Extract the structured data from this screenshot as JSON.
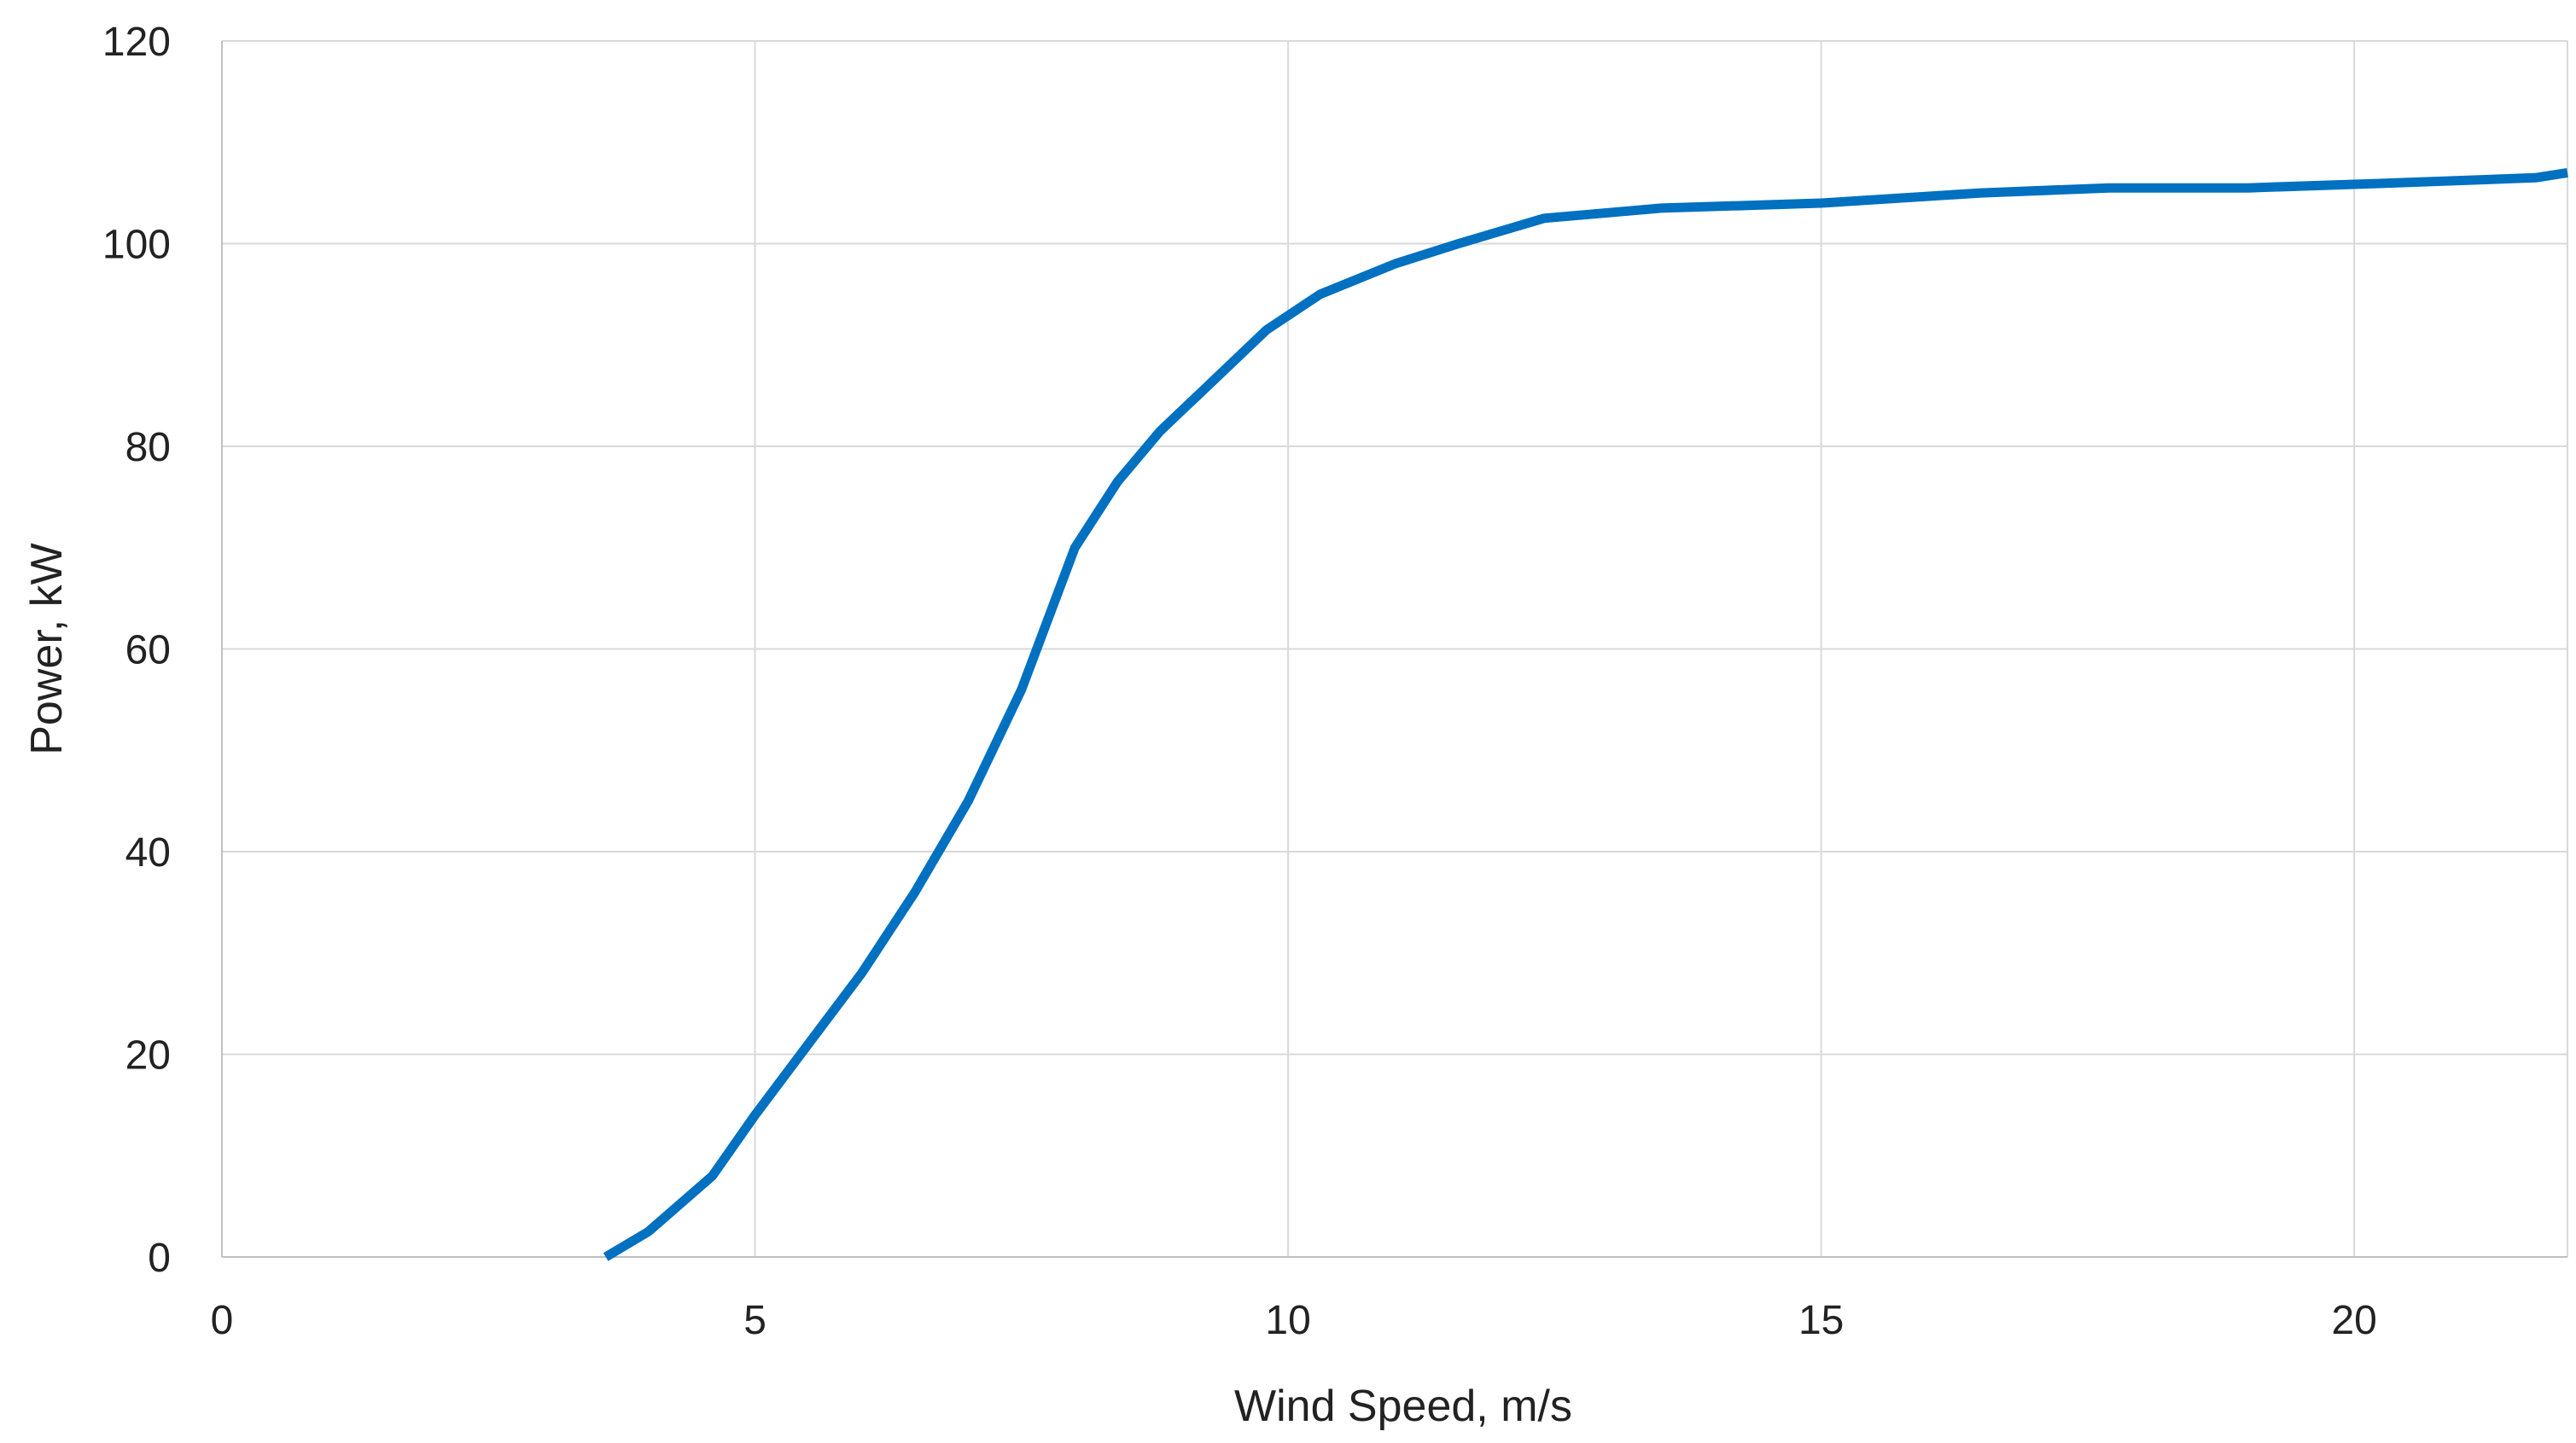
{
  "chart_data": {
    "type": "line",
    "title": "",
    "xlabel": "Wind Speed, m/s",
    "ylabel": "Power, kW",
    "xlim": [
      0,
      22
    ],
    "ylim": [
      0,
      120
    ],
    "xticks": [
      0,
      5,
      10,
      15,
      20
    ],
    "yticks": [
      0,
      20,
      40,
      60,
      80,
      100,
      120
    ],
    "grid": true,
    "legend": "none",
    "series": [
      {
        "color": "#0070c0",
        "x": [
          3.6,
          4.0,
          4.6,
          5.0,
          5.5,
          6.0,
          6.5,
          7.0,
          7.5,
          8.0,
          8.4,
          8.8,
          9.2,
          9.8,
          10.3,
          11.0,
          11.6,
          12.4,
          13.5,
          15.0,
          16.5,
          17.7,
          19.0,
          20.4,
          21.7,
          22.0
        ],
        "y": [
          0,
          2.5,
          8,
          14,
          21,
          28,
          36,
          45,
          56,
          70,
          76.5,
          81.5,
          85.5,
          91.5,
          95,
          98,
          100,
          102.5,
          103.5,
          104,
          105,
          105.5,
          105.5,
          106,
          106.5,
          107
        ]
      }
    ]
  }
}
